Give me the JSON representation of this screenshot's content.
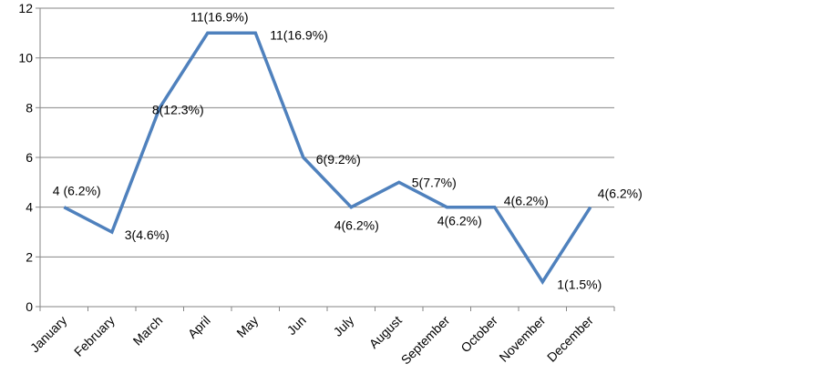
{
  "chart_data": {
    "type": "line",
    "categories": [
      "January",
      "February",
      "March",
      "April",
      "May",
      "Jun",
      "July",
      "August",
      "September",
      "October",
      "November",
      "December"
    ],
    "values": [
      4,
      3,
      8,
      11,
      11,
      6,
      4,
      5,
      4,
      4,
      1,
      4
    ],
    "data_labels": [
      "4 (6.2%)",
      "3(4.6%)",
      "8(12.3%)",
      "11(16.9%)",
      "11(16.9%)",
      "6(9.2%)",
      "4(6.2%)",
      "5(7.7%)",
      "4(6.2%)",
      "4(6.2%)",
      "1(1.5%)",
      "4(6.2%)"
    ],
    "y_ticks": [
      "0",
      "2",
      "4",
      "6",
      "8",
      "10",
      "12"
    ],
    "ylim": [
      0,
      12
    ],
    "grid": true,
    "line_color": "#4F81BD",
    "grid_color": "#868686"
  }
}
